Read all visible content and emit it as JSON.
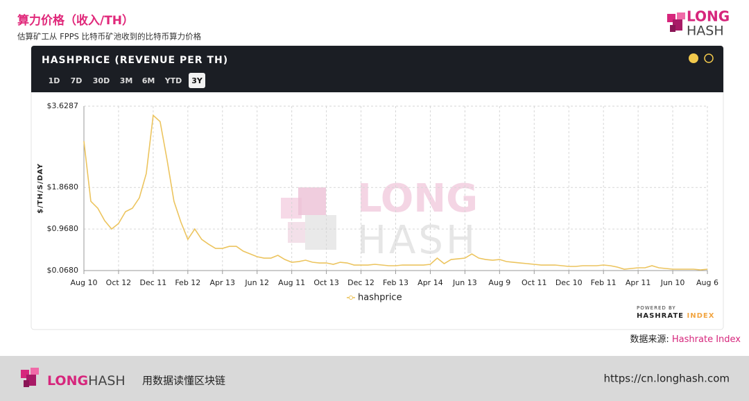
{
  "header": {
    "title": "算力价格（收入/TH）",
    "subtitle": "估算矿工从 FPPS 比特币矿池收到的比特币算力价格",
    "logo": [
      "LONG",
      "HASH"
    ]
  },
  "panel": {
    "title": "HASHPRICE (REVENUE PER TH)",
    "ranges": [
      "1D",
      "7D",
      "30D",
      "3M",
      "6M",
      "YTD",
      "3Y"
    ],
    "active_range": "3Y"
  },
  "chart_data": {
    "type": "line",
    "y_label": "$/TH/S/DAY",
    "watermark": [
      "LONG",
      "HASH"
    ],
    "categories": [
      "Aug 10",
      null,
      null,
      null,
      null,
      "Oct 12",
      null,
      null,
      null,
      null,
      "Dec 11",
      null,
      null,
      null,
      null,
      "Feb 12",
      null,
      null,
      null,
      null,
      "Apr 13",
      null,
      null,
      null,
      null,
      "Jun 12",
      null,
      null,
      null,
      null,
      "Aug 11",
      null,
      null,
      null,
      null,
      "Oct 13",
      null,
      null,
      null,
      null,
      "Dec 12",
      null,
      null,
      null,
      null,
      "Feb 13",
      null,
      null,
      null,
      null,
      "Apr 14",
      null,
      null,
      null,
      null,
      "Jun 13",
      null,
      null,
      null,
      null,
      "Aug 9",
      null,
      null,
      null,
      null,
      "Oct 11",
      null,
      null,
      null,
      null,
      "Dec 10",
      null,
      null,
      null,
      null,
      "Feb 11",
      null,
      null,
      null,
      null,
      "Apr 11",
      null,
      null,
      null,
      null,
      "Jun 10",
      null,
      null,
      null,
      null,
      "Aug 6"
    ],
    "series": [
      {
        "name": "hashprice",
        "color": "#ecc45e",
        "values": [
          2.87,
          1.568,
          1.418,
          1.148,
          0.968,
          1.088,
          1.343,
          1.418,
          1.643,
          2.168,
          3.43,
          3.293,
          2.468,
          1.568,
          1.118,
          0.743,
          0.968,
          0.743,
          0.638,
          0.548,
          0.548,
          0.593,
          0.593,
          0.488,
          0.428,
          0.368,
          0.338,
          0.338,
          0.398,
          0.308,
          0.248,
          0.263,
          0.293,
          0.248,
          0.233,
          0.233,
          0.203,
          0.248,
          0.233,
          0.188,
          0.188,
          0.188,
          0.203,
          0.188,
          0.173,
          0.173,
          0.188,
          0.188,
          0.188,
          0.188,
          0.203,
          0.338,
          0.218,
          0.308,
          0.323,
          0.338,
          0.428,
          0.338,
          0.308,
          0.293,
          0.308,
          0.263,
          0.248,
          0.233,
          0.218,
          0.203,
          0.188,
          0.188,
          0.188,
          0.173,
          0.158,
          0.158,
          0.173,
          0.173,
          0.173,
          0.188,
          0.173,
          0.143,
          0.098,
          0.113,
          0.128,
          0.128,
          0.173,
          0.128,
          0.113,
          0.098,
          0.098,
          0.098,
          0.098,
          0.083,
          0.098
        ]
      }
    ],
    "ylim": [
      0.068,
      3.6287
    ],
    "yticks": [
      {
        "value": 0.068,
        "label": "$0.0680"
      },
      {
        "value": 0.968,
        "label": "$0.9680"
      },
      {
        "value": 1.868,
        "label": "$1.8680"
      },
      {
        "value": 3.6287,
        "label": "$3.6287"
      }
    ],
    "grid": true
  },
  "powered_by": {
    "label": "POWERED BY",
    "brand": "HASHRATE",
    "brand_accent": "INDEX"
  },
  "source": {
    "label": "数据来源: ",
    "name": "Hashrate Index"
  },
  "footer": {
    "logo": [
      "LONG",
      "HASH"
    ],
    "slogan": "用数据读懂区块链",
    "url": "https://cn.longhash.com"
  }
}
